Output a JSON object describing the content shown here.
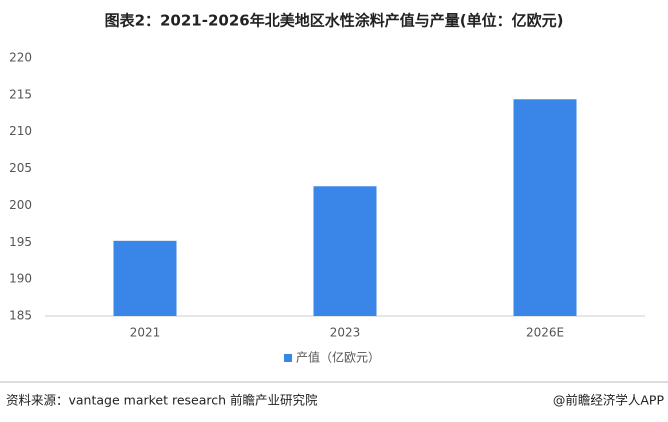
{
  "chart_data": {
    "type": "bar",
    "title": "图表2：2021-2026年北美地区水性涂料产值与产量(单位：亿欧元)",
    "categories": [
      "2021",
      "2023",
      "2026E"
    ],
    "series": [
      {
        "name": "产值（亿欧元）",
        "color": "#3a86e8",
        "values": [
          195.2,
          202.6,
          214.4
        ]
      }
    ],
    "ylim": [
      185,
      220
    ],
    "yticks": [
      185,
      190,
      195,
      200,
      205,
      210,
      215,
      220
    ],
    "grid": false,
    "legend": "bottom",
    "source": "资料来源：vantage market research 前瞻产业研究院",
    "credit": "@前瞻经济学人APP"
  }
}
